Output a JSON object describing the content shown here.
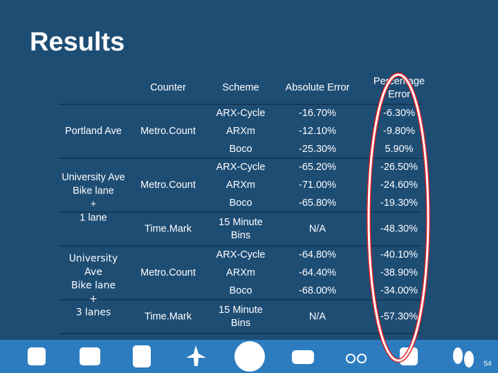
{
  "header": {
    "title": "Results"
  },
  "table": {
    "headers": [
      "Counter",
      "Scheme",
      "Absolute Error",
      "Percentage Error"
    ],
    "groups": [
      {
        "site": [
          "Portland Ave"
        ],
        "counters": [
          {
            "name": "Metro.Count",
            "rows": [
              {
                "scheme": [
                  "ARX-Cycle"
                ],
                "absolute": "-16.70%",
                "percentage": "-6.30%"
              },
              {
                "scheme": [
                  "ARXm"
                ],
                "absolute": "-12.10%",
                "percentage": "-9.80%"
              },
              {
                "scheme": [
                  "Boco"
                ],
                "absolute": "-25.30%",
                "percentage": "5.90%"
              }
            ]
          }
        ]
      },
      {
        "site": [
          "University Ave",
          "Bike lane",
          "+",
          "1 lane"
        ],
        "counters": [
          {
            "name": "Metro.Count",
            "rows": [
              {
                "scheme": [
                  "ARX-Cycle"
                ],
                "absolute": "-65.20%",
                "percentage": "-26.50%"
              },
              {
                "scheme": [
                  "ARXm"
                ],
                "absolute": "-71.00%",
                "percentage": "-24.60%"
              },
              {
                "scheme": [
                  "Boco"
                ],
                "absolute": "-65.80%",
                "percentage": "-19.30%"
              }
            ]
          },
          {
            "name": "Time.Mark",
            "rows": [
              {
                "scheme": [
                  "15 Minute",
                  "Bins"
                ],
                "absolute": "N/A",
                "percentage": "-48.30%"
              }
            ]
          }
        ]
      },
      {
        "site": [
          "University",
          "Ave",
          "Bike lane",
          "+",
          "3 lanes"
        ],
        "alt_font": true,
        "counters": [
          {
            "name": "Metro.Count",
            "rows": [
              {
                "scheme": [
                  "ARX-Cycle"
                ],
                "absolute": "-64.80%",
                "percentage": "-40.10%"
              },
              {
                "scheme": [
                  "ARXm"
                ],
                "absolute": "-64.40%",
                "percentage": "-38.90%"
              },
              {
                "scheme": [
                  "Boco"
                ],
                "absolute": "-68.00%",
                "percentage": "-34.00%"
              }
            ]
          },
          {
            "name": "Time.Mark",
            "rows": [
              {
                "scheme": [
                  "15 Minute",
                  "Bins"
                ],
                "absolute": "N/A",
                "percentage": "-57.30%"
              }
            ]
          }
        ]
      }
    ]
  },
  "footer": {
    "page": "54"
  }
}
